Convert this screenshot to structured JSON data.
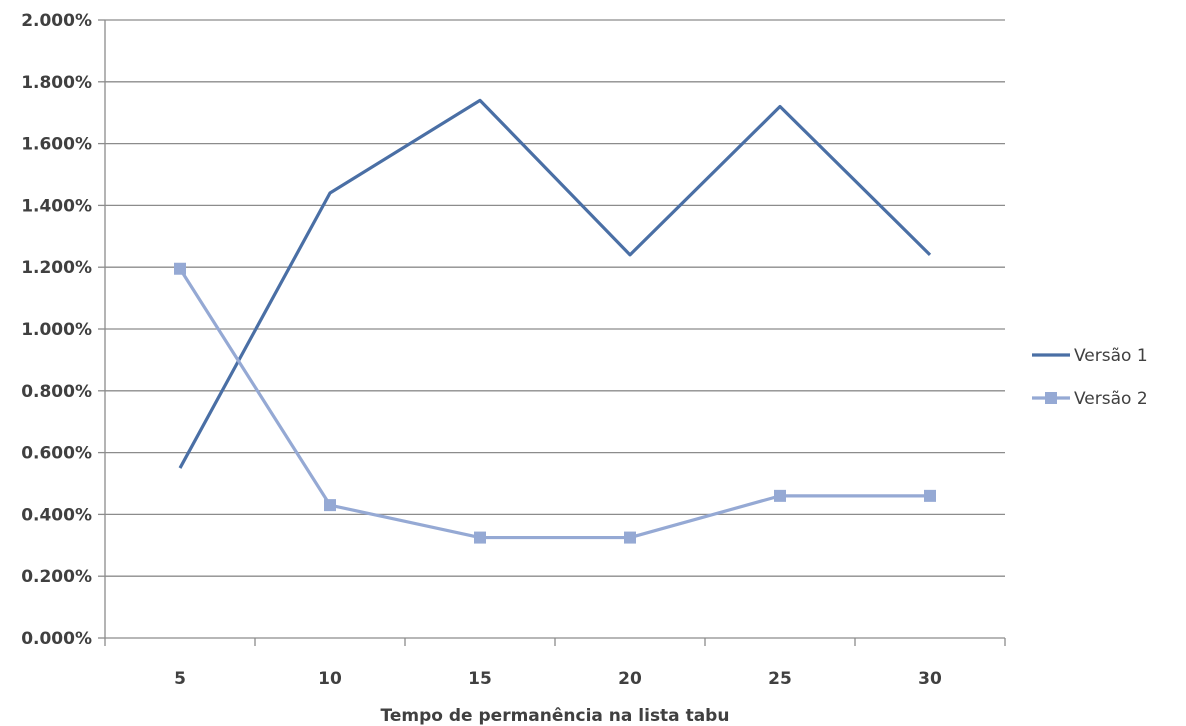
{
  "chart_data": {
    "type": "line",
    "title": "",
    "xlabel": "Tempo de permanência na lista tabu",
    "ylabel": "",
    "categories": [
      "5",
      "10",
      "15",
      "20",
      "25",
      "30"
    ],
    "y_ticks": [
      "0.000%",
      "0.200%",
      "0.400%",
      "0.600%",
      "0.800%",
      "1.000%",
      "1.200%",
      "1.400%",
      "1.600%",
      "1.800%",
      "2.000%"
    ],
    "ylim": [
      0,
      2.0
    ],
    "y_unit": "%",
    "grid": true,
    "legend_position": "right",
    "series": [
      {
        "name": "Versão 1",
        "color": "#4a6fa5",
        "marker": "none",
        "values": [
          0.55,
          1.44,
          1.74,
          1.24,
          1.72,
          1.24
        ]
      },
      {
        "name": "Versão 2",
        "color": "#95a9d4",
        "marker": "square",
        "values": [
          1.195,
          0.43,
          0.325,
          0.325,
          0.46,
          0.46
        ]
      }
    ]
  }
}
